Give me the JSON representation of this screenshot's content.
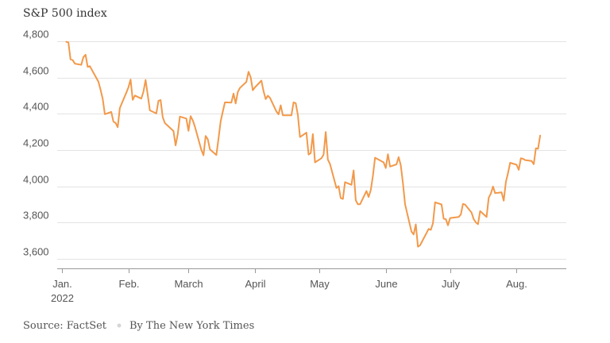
{
  "chart_data": {
    "type": "line",
    "title": "S&P 500 index",
    "xlabel": "",
    "ylabel": "",
    "ylim": [
      3600,
      4800
    ],
    "yticks": [
      3600,
      3800,
      4000,
      4200,
      4400,
      4600,
      4800
    ],
    "ytick_labels": [
      "3,600",
      "3,800",
      "4,000",
      "4,200",
      "4,400",
      "4,600",
      "4,800"
    ],
    "xticks": [
      {
        "date": "2022-01-01",
        "label": "Jan.",
        "sublabel": "2022"
      },
      {
        "date": "2022-02-01",
        "label": "Feb."
      },
      {
        "date": "2022-03-01",
        "label": "March"
      },
      {
        "date": "2022-04-01",
        "label": "April"
      },
      {
        "date": "2022-05-01",
        "label": "May"
      },
      {
        "date": "2022-06-01",
        "label": "June"
      },
      {
        "date": "2022-07-01",
        "label": "July"
      },
      {
        "date": "2022-08-01",
        "label": "Aug."
      }
    ],
    "grid": true,
    "line_color": "#f2994a",
    "series": [
      {
        "name": "",
        "points": [
          [
            "2022-01-03",
            4797
          ],
          [
            "2022-01-04",
            4794
          ],
          [
            "2022-01-05",
            4700
          ],
          [
            "2022-01-06",
            4696
          ],
          [
            "2022-01-07",
            4677
          ],
          [
            "2022-01-10",
            4670
          ],
          [
            "2022-01-11",
            4713
          ],
          [
            "2022-01-12",
            4726
          ],
          [
            "2022-01-13",
            4659
          ],
          [
            "2022-01-14",
            4663
          ],
          [
            "2022-01-18",
            4577
          ],
          [
            "2022-01-19",
            4533
          ],
          [
            "2022-01-20",
            4483
          ],
          [
            "2022-01-21",
            4398
          ],
          [
            "2022-01-24",
            4410
          ],
          [
            "2022-01-25",
            4357
          ],
          [
            "2022-01-26",
            4350
          ],
          [
            "2022-01-27",
            4326
          ],
          [
            "2022-01-28",
            4432
          ],
          [
            "2022-01-31",
            4516
          ],
          [
            "2022-02-01",
            4546
          ],
          [
            "2022-02-02",
            4589
          ],
          [
            "2022-02-03",
            4477
          ],
          [
            "2022-02-04",
            4501
          ],
          [
            "2022-02-07",
            4484
          ],
          [
            "2022-02-08",
            4522
          ],
          [
            "2022-02-09",
            4587
          ],
          [
            "2022-02-10",
            4504
          ],
          [
            "2022-02-11",
            4419
          ],
          [
            "2022-02-14",
            4402
          ],
          [
            "2022-02-15",
            4472
          ],
          [
            "2022-02-16",
            4476
          ],
          [
            "2022-02-17",
            4381
          ],
          [
            "2022-02-18",
            4349
          ],
          [
            "2022-02-22",
            4305
          ],
          [
            "2022-02-23",
            4226
          ],
          [
            "2022-02-24",
            4288
          ],
          [
            "2022-02-25",
            4385
          ],
          [
            "2022-02-28",
            4374
          ],
          [
            "2022-03-01",
            4306
          ],
          [
            "2022-03-02",
            4387
          ],
          [
            "2022-03-03",
            4364
          ],
          [
            "2022-03-04",
            4329
          ],
          [
            "2022-03-07",
            4201
          ],
          [
            "2022-03-08",
            4171
          ],
          [
            "2022-03-09",
            4278
          ],
          [
            "2022-03-10",
            4260
          ],
          [
            "2022-03-11",
            4204
          ],
          [
            "2022-03-14",
            4173
          ],
          [
            "2022-03-15",
            4263
          ],
          [
            "2022-03-16",
            4358
          ],
          [
            "2022-03-17",
            4412
          ],
          [
            "2022-03-18",
            4463
          ],
          [
            "2022-03-21",
            4462
          ],
          [
            "2022-03-22",
            4512
          ],
          [
            "2022-03-23",
            4457
          ],
          [
            "2022-03-24",
            4520
          ],
          [
            "2022-03-25",
            4543
          ],
          [
            "2022-03-28",
            4576
          ],
          [
            "2022-03-29",
            4632
          ],
          [
            "2022-03-30",
            4602
          ],
          [
            "2022-03-31",
            4530
          ],
          [
            "2022-04-01",
            4546
          ],
          [
            "2022-04-04",
            4583
          ],
          [
            "2022-04-05",
            4525
          ],
          [
            "2022-04-06",
            4481
          ],
          [
            "2022-04-07",
            4500
          ],
          [
            "2022-04-08",
            4488
          ],
          [
            "2022-04-11",
            4413
          ],
          [
            "2022-04-12",
            4397
          ],
          [
            "2022-04-13",
            4447
          ],
          [
            "2022-04-14",
            4392
          ],
          [
            "2022-04-18",
            4392
          ],
          [
            "2022-04-19",
            4463
          ],
          [
            "2022-04-20",
            4459
          ],
          [
            "2022-04-21",
            4394
          ],
          [
            "2022-04-22",
            4272
          ],
          [
            "2022-04-25",
            4296
          ],
          [
            "2022-04-26",
            4175
          ],
          [
            "2022-04-27",
            4183
          ],
          [
            "2022-04-28",
            4288
          ],
          [
            "2022-04-29",
            4132
          ],
          [
            "2022-05-02",
            4155
          ],
          [
            "2022-05-03",
            4175
          ],
          [
            "2022-05-04",
            4300
          ],
          [
            "2022-05-05",
            4147
          ],
          [
            "2022-05-06",
            4123
          ],
          [
            "2022-05-09",
            3991
          ],
          [
            "2022-05-10",
            4001
          ],
          [
            "2022-05-11",
            3935
          ],
          [
            "2022-05-12",
            3930
          ],
          [
            "2022-05-13",
            4023
          ],
          [
            "2022-05-16",
            4008
          ],
          [
            "2022-05-17",
            4088
          ],
          [
            "2022-05-18",
            3923
          ],
          [
            "2022-05-19",
            3901
          ],
          [
            "2022-05-20",
            3901
          ],
          [
            "2022-05-23",
            3974
          ],
          [
            "2022-05-24",
            3941
          ],
          [
            "2022-05-25",
            3979
          ],
          [
            "2022-05-26",
            4058
          ],
          [
            "2022-05-27",
            4158
          ],
          [
            "2022-05-31",
            4132
          ],
          [
            "2022-06-01",
            4101
          ],
          [
            "2022-06-02",
            4177
          ],
          [
            "2022-06-03",
            4109
          ],
          [
            "2022-06-06",
            4121
          ],
          [
            "2022-06-07",
            4161
          ],
          [
            "2022-06-08",
            4116
          ],
          [
            "2022-06-09",
            4018
          ],
          [
            "2022-06-10",
            3901
          ],
          [
            "2022-06-13",
            3750
          ],
          [
            "2022-06-14",
            3735
          ],
          [
            "2022-06-15",
            3790
          ],
          [
            "2022-06-16",
            3667
          ],
          [
            "2022-06-17",
            3675
          ],
          [
            "2022-06-21",
            3765
          ],
          [
            "2022-06-22",
            3760
          ],
          [
            "2022-06-23",
            3796
          ],
          [
            "2022-06-24",
            3912
          ],
          [
            "2022-06-27",
            3900
          ],
          [
            "2022-06-28",
            3821
          ],
          [
            "2022-06-29",
            3819
          ],
          [
            "2022-06-30",
            3785
          ],
          [
            "2022-07-01",
            3825
          ],
          [
            "2022-07-05",
            3831
          ],
          [
            "2022-07-06",
            3845
          ],
          [
            "2022-07-07",
            3903
          ],
          [
            "2022-07-08",
            3899
          ],
          [
            "2022-07-11",
            3855
          ],
          [
            "2022-07-12",
            3819
          ],
          [
            "2022-07-13",
            3801
          ],
          [
            "2022-07-14",
            3791
          ],
          [
            "2022-07-15",
            3863
          ],
          [
            "2022-07-18",
            3831
          ],
          [
            "2022-07-19",
            3937
          ],
          [
            "2022-07-20",
            3960
          ],
          [
            "2022-07-21",
            3999
          ],
          [
            "2022-07-22",
            3962
          ],
          [
            "2022-07-25",
            3967
          ],
          [
            "2022-07-26",
            3921
          ],
          [
            "2022-07-27",
            4024
          ],
          [
            "2022-07-28",
            4073
          ],
          [
            "2022-07-29",
            4130
          ],
          [
            "2022-08-01",
            4119
          ],
          [
            "2022-08-02",
            4091
          ],
          [
            "2022-08-03",
            4155
          ],
          [
            "2022-08-04",
            4152
          ],
          [
            "2022-08-05",
            4145
          ],
          [
            "2022-08-08",
            4140
          ],
          [
            "2022-08-09",
            4122
          ],
          [
            "2022-08-10",
            4210
          ],
          [
            "2022-08-11",
            4207
          ],
          [
            "2022-08-12",
            4280
          ]
        ]
      }
    ]
  },
  "footer": {
    "source": "Source: FactSet",
    "credit": "By The New York Times"
  }
}
